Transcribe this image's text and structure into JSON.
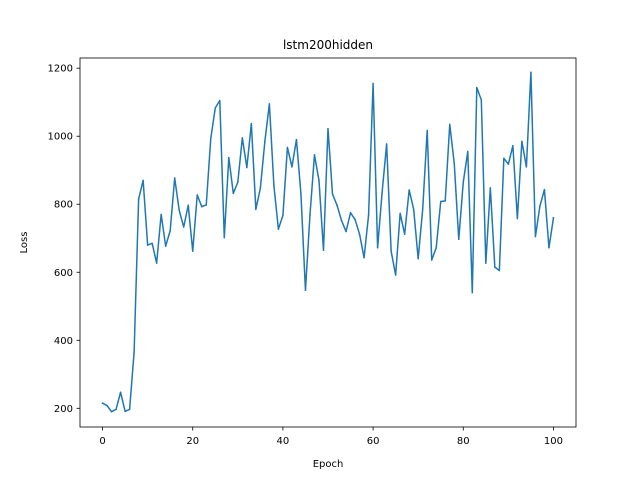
{
  "chart_data": {
    "type": "line",
    "title": "lstm200hidden",
    "xlabel": "Epoch",
    "ylabel": "Loss",
    "xlim": [
      -5,
      105
    ],
    "ylim": [
      145,
      1230
    ],
    "xticks": [
      0,
      20,
      40,
      60,
      80,
      100
    ],
    "yticks": [
      200,
      400,
      600,
      800,
      1000,
      1200
    ],
    "grid": false,
    "legend": "none",
    "series": [
      {
        "color": "#1f77b4",
        "x": [
          0,
          1,
          2,
          3,
          4,
          5,
          6,
          7,
          8,
          9,
          10,
          11,
          12,
          13,
          14,
          15,
          16,
          17,
          18,
          19,
          20,
          21,
          22,
          23,
          24,
          25,
          26,
          27,
          28,
          29,
          30,
          31,
          32,
          33,
          34,
          35,
          36,
          37,
          38,
          39,
          40,
          41,
          42,
          43,
          44,
          45,
          46,
          47,
          48,
          49,
          50,
          51,
          52,
          53,
          54,
          55,
          56,
          57,
          58,
          59,
          60,
          61,
          62,
          63,
          64,
          65,
          66,
          67,
          68,
          69,
          70,
          71,
          72,
          73,
          74,
          75,
          76,
          77,
          78,
          79,
          80,
          81,
          82,
          83,
          84,
          85,
          86,
          87,
          88,
          89,
          90,
          91,
          92,
          93,
          94,
          95,
          96,
          97,
          98,
          99,
          100
        ],
        "values": [
          215,
          208,
          190,
          197,
          247,
          191,
          197,
          365,
          815,
          870,
          680,
          685,
          627,
          770,
          677,
          722,
          877,
          782,
          733,
          797,
          662,
          827,
          793,
          798,
          993,
          1083,
          1105,
          702,
          937,
          832,
          865,
          995,
          908,
          1037,
          785,
          847,
          985,
          1095,
          855,
          727,
          767,
          967,
          910,
          990,
          830,
          547,
          768,
          945,
          870,
          665,
          1022,
          830,
          797,
          752,
          720,
          775,
          755,
          712,
          643,
          768,
          1155,
          672,
          835,
          977,
          662,
          592,
          773,
          712,
          842,
          785,
          640,
          785,
          1017,
          636,
          672,
          808,
          810,
          1035,
          920,
          697,
          865,
          955,
          540,
          1143,
          1107,
          627,
          848,
          615,
          605,
          935,
          918,
          972,
          758,
          985,
          910,
          1188,
          705,
          795,
          843,
          672,
          760
        ]
      }
    ]
  }
}
